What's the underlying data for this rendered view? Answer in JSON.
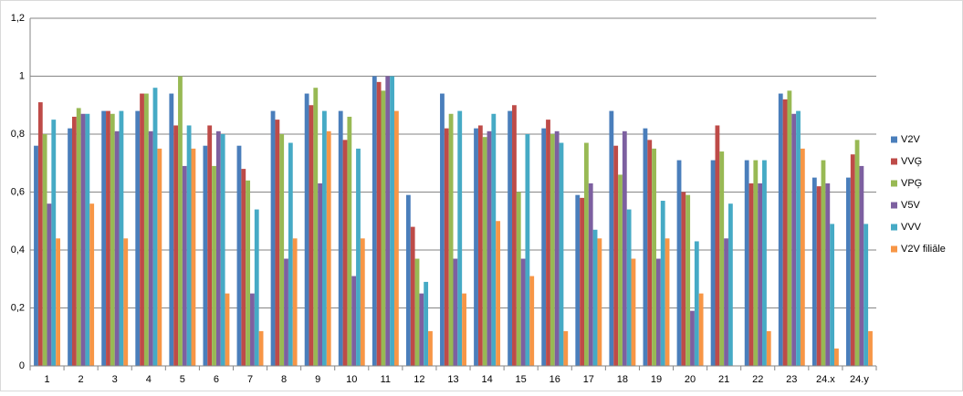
{
  "chart_data": {
    "type": "bar",
    "categories": [
      "1",
      "2",
      "3",
      "4",
      "5",
      "6",
      "7",
      "8",
      "9",
      "10",
      "11",
      "12",
      "13",
      "14",
      "15",
      "16",
      "17",
      "18",
      "19",
      "20",
      "21",
      "22",
      "23",
      "24.x",
      "24.y"
    ],
    "series": [
      {
        "name": "V2V",
        "color": "#4a7ebb",
        "values": [
          0.76,
          0.82,
          0.88,
          0.88,
          0.94,
          0.76,
          0.76,
          0.88,
          0.94,
          0.88,
          1.0,
          0.59,
          0.94,
          0.82,
          0.88,
          0.82,
          0.59,
          0.88,
          0.82,
          0.71,
          0.71,
          0.71,
          0.94,
          0.65,
          0.65
        ]
      },
      {
        "name": "VVĢ",
        "color": "#be4b48",
        "values": [
          0.91,
          0.86,
          0.88,
          0.94,
          0.83,
          0.83,
          0.68,
          0.85,
          0.9,
          0.78,
          0.98,
          0.48,
          0.82,
          0.83,
          0.9,
          0.85,
          0.58,
          0.76,
          0.78,
          0.6,
          0.83,
          0.63,
          0.92,
          0.62,
          0.73
        ]
      },
      {
        "name": "VPĢ",
        "color": "#98b954",
        "values": [
          0.8,
          0.89,
          0.87,
          0.94,
          1.0,
          0.69,
          0.64,
          0.8,
          0.96,
          0.86,
          0.95,
          0.37,
          0.87,
          0.79,
          0.6,
          0.8,
          0.77,
          0.66,
          0.75,
          0.59,
          0.74,
          0.71,
          0.95,
          0.71,
          0.78
        ]
      },
      {
        "name": "V5V",
        "color": "#7d60a0",
        "values": [
          0.56,
          0.87,
          0.81,
          0.81,
          0.69,
          0.81,
          0.25,
          0.37,
          0.63,
          0.31,
          1.0,
          0.25,
          0.37,
          0.81,
          0.37,
          0.81,
          0.63,
          0.81,
          0.37,
          0.19,
          0.44,
          0.63,
          0.87,
          0.63,
          0.69
        ]
      },
      {
        "name": "VVV",
        "color": "#46aac5",
        "values": [
          0.85,
          0.87,
          0.88,
          0.96,
          0.83,
          0.8,
          0.54,
          0.77,
          0.88,
          0.75,
          1.0,
          0.29,
          0.88,
          0.87,
          0.8,
          0.77,
          0.47,
          0.54,
          0.57,
          0.43,
          0.56,
          0.71,
          0.88,
          0.49,
          0.49
        ]
      },
      {
        "name": "V2V filiāle",
        "color": "#f79646",
        "values": [
          0.44,
          0.56,
          0.44,
          0.75,
          0.75,
          0.25,
          0.12,
          0.44,
          0.81,
          0.44,
          0.88,
          0.12,
          0.25,
          0.5,
          0.31,
          0.12,
          0.44,
          0.37,
          0.44,
          0.25,
          0,
          0.12,
          0.75,
          0.06,
          0.12
        ]
      }
    ],
    "ylim": [
      0,
      1.2
    ],
    "yticks": [
      0,
      {
        "value": 0.2,
        "label": "0,2"
      },
      {
        "value": 0.4,
        "label": "0,4"
      },
      {
        "value": 0.6,
        "label": "0,6"
      },
      {
        "value": 0.8,
        "label": "0,8"
      },
      1,
      {
        "value": 1.2,
        "label": "1,2"
      }
    ],
    "grid": true,
    "legend": "right"
  }
}
